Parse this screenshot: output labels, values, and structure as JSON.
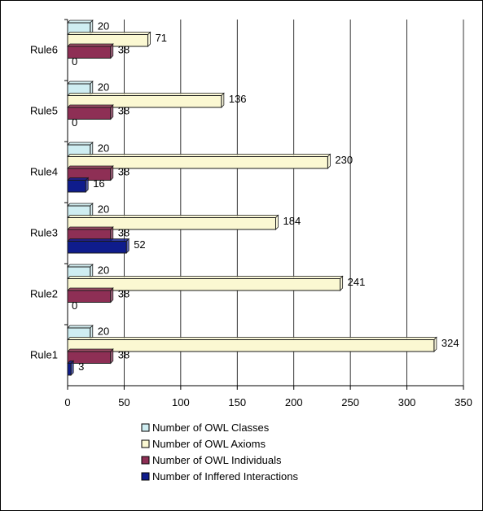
{
  "chart_data": {
    "type": "bar",
    "orientation": "horizontal",
    "title": "",
    "xlabel": "",
    "ylabel": "",
    "categories": [
      "Rule1",
      "Rule2",
      "Rule3",
      "Rule4",
      "Rule5",
      "Rule6"
    ],
    "series": [
      {
        "name": "Number of OWL Classes",
        "values": [
          20,
          20,
          20,
          20,
          20,
          20
        ],
        "color": "#cfeef2",
        "stroke": "#1a1a1a"
      },
      {
        "name": "Number of OWL Axioms",
        "values": [
          324,
          241,
          184,
          230,
          136,
          71
        ],
        "color": "#fbf8d2",
        "stroke": "#1a1a1a"
      },
      {
        "name": "Number of OWL Individuals",
        "values": [
          38,
          38,
          38,
          38,
          38,
          38
        ],
        "color": "#8e2f55",
        "stroke": "#1a1a1a"
      },
      {
        "name": "Number of Inffered Interactions",
        "values": [
          3,
          0,
          52,
          16,
          0,
          0
        ],
        "color": "#0f1c8c",
        "stroke": "#1a1a1a"
      }
    ],
    "xlim": [
      0,
      350
    ],
    "xticks": [
      0,
      50,
      100,
      150,
      200,
      250,
      300,
      350
    ],
    "grid": "vertical",
    "legend_position": "bottom"
  }
}
